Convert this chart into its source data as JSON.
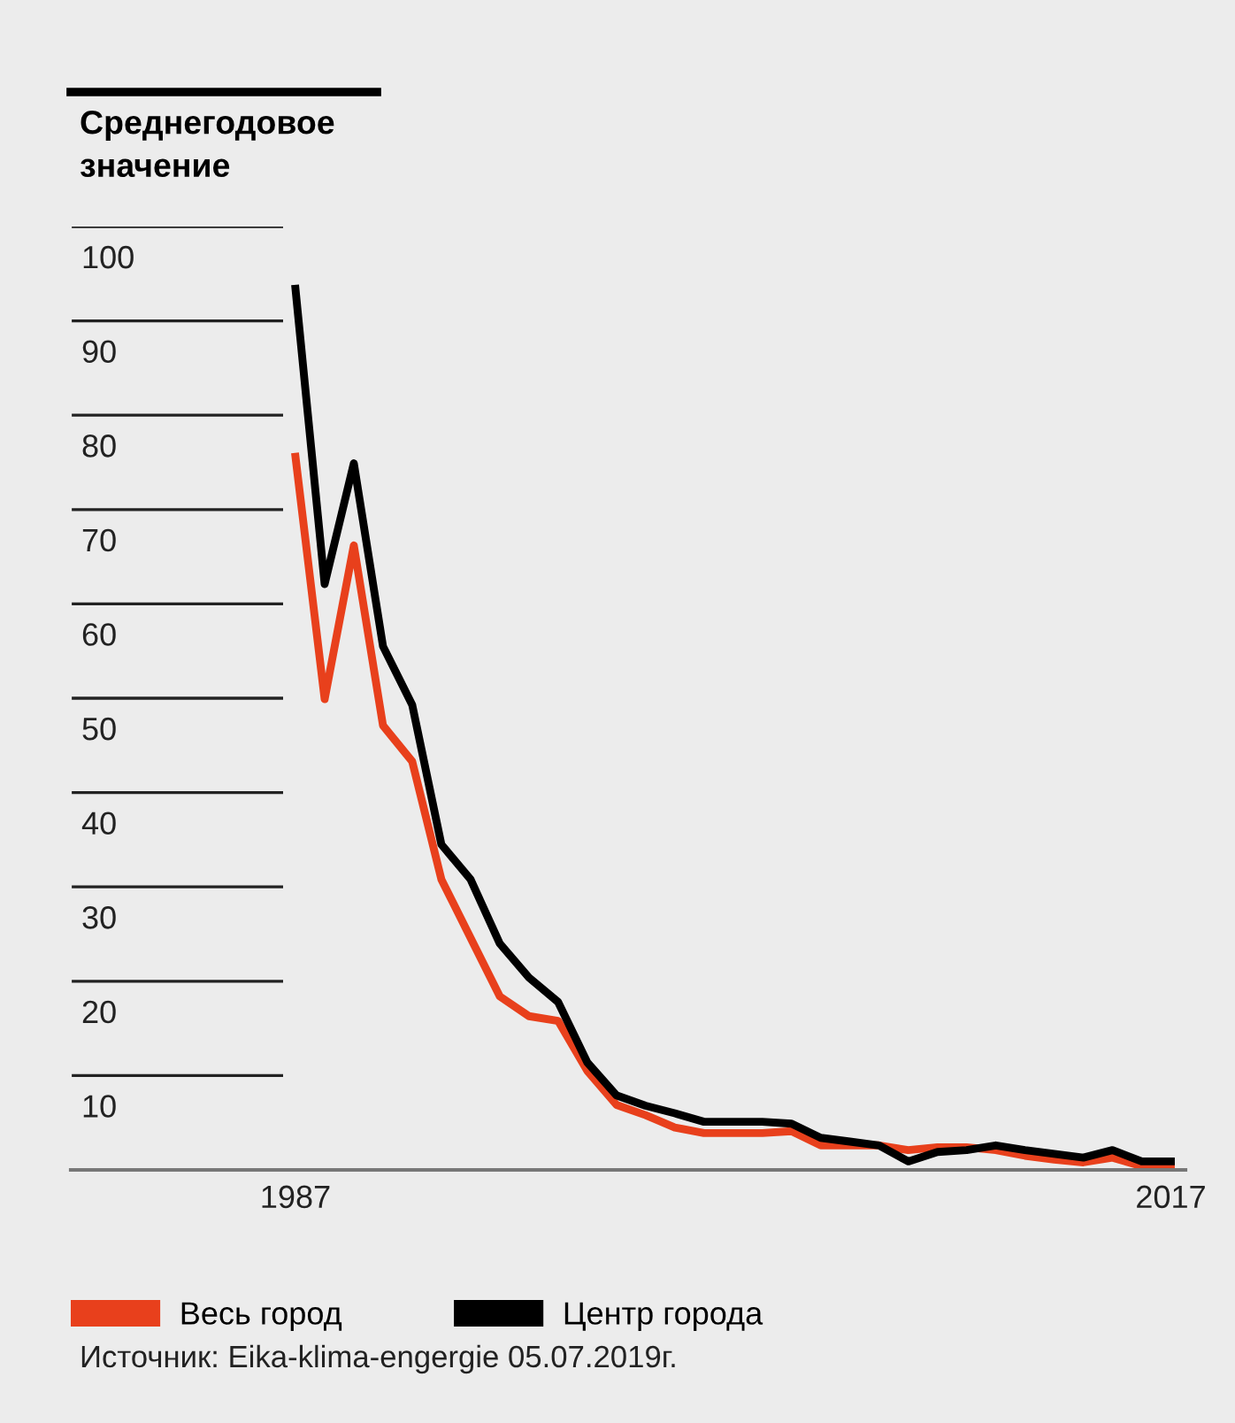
{
  "chart_data": {
    "type": "line",
    "title": "Среднегодовое значение",
    "x": [
      1987,
      1988,
      1989,
      1990,
      1991,
      1992,
      1993,
      1994,
      1995,
      1996,
      1997,
      1998,
      1999,
      2000,
      2001,
      2002,
      2003,
      2004,
      2005,
      2006,
      2007,
      2008,
      2009,
      2010,
      2011,
      2012,
      2013,
      2014,
      2015,
      2016,
      2017
    ],
    "series": [
      {
        "name": "Весь город",
        "color": "#e8401c",
        "values": [
          75.6,
          49.9,
          66.2,
          47.1,
          43.3,
          30.8,
          24.6,
          18.4,
          16.3,
          15.8,
          10.5,
          6.9,
          5.8,
          4.5,
          3.9,
          3.9,
          3.9,
          4.1,
          2.6,
          2.6,
          2.6,
          2.1,
          2.4,
          2.4,
          2.1,
          1.5,
          1.1,
          0.8,
          1.3,
          0.4,
          0.4
        ]
      },
      {
        "name": "Центр города",
        "color": "#000000",
        "values": [
          93.4,
          62.1,
          74.9,
          55.5,
          49.3,
          34.5,
          30.8,
          24.0,
          20.4,
          17.8,
          11.4,
          7.9,
          6.8,
          6.0,
          5.1,
          5.1,
          5.1,
          4.9,
          3.4,
          3.0,
          2.6,
          0.9,
          1.9,
          2.1,
          2.6,
          2.1,
          1.7,
          1.3,
          2.1,
          0.9,
          0.9
        ]
      }
    ],
    "xlim": [
      1979.3,
      2017.5
    ],
    "xticks": [
      1987,
      2017
    ],
    "ylim": [
      0,
      100
    ],
    "yticks": [
      10,
      20,
      30,
      40,
      50,
      60,
      70,
      80,
      90,
      100
    ],
    "grid": "y",
    "legend": "bottom",
    "line_style": "solid",
    "marker": "none",
    "annotations": [
      "Источник: Eika-klima-engergie 05.07.2019г."
    ]
  }
}
